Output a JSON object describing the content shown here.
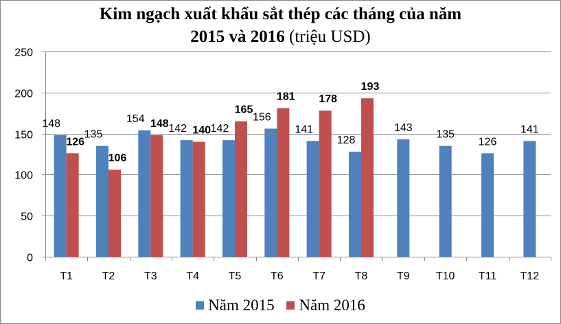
{
  "title": {
    "line1": "Kim ngạch xuất khẩu sắt thép các tháng của năm",
    "line2_bold": "2015 và 2016",
    "line2_normal": " (triệu USD)"
  },
  "colors": {
    "series_2015": "#4F81BD",
    "series_2016": "#C0504D",
    "grid": "#868686"
  },
  "chart_data": {
    "type": "bar",
    "categories": [
      "T1",
      "T2",
      "T3",
      "T4",
      "T5",
      "T6",
      "T7",
      "T8",
      "T9",
      "T10",
      "T11",
      "T12"
    ],
    "series": [
      {
        "name": "Năm 2015",
        "values": [
          148,
          135,
          154,
          142,
          142,
          156,
          141,
          128,
          143,
          135,
          126,
          141
        ]
      },
      {
        "name": "Năm 2016",
        "values": [
          126,
          106,
          148,
          140,
          165,
          181,
          178,
          193,
          null,
          null,
          null,
          null
        ]
      }
    ],
    "ylim": [
      0,
      250
    ],
    "yticks": [
      0,
      50,
      100,
      150,
      200,
      250
    ],
    "grid": true,
    "legend_position": "bottom"
  }
}
